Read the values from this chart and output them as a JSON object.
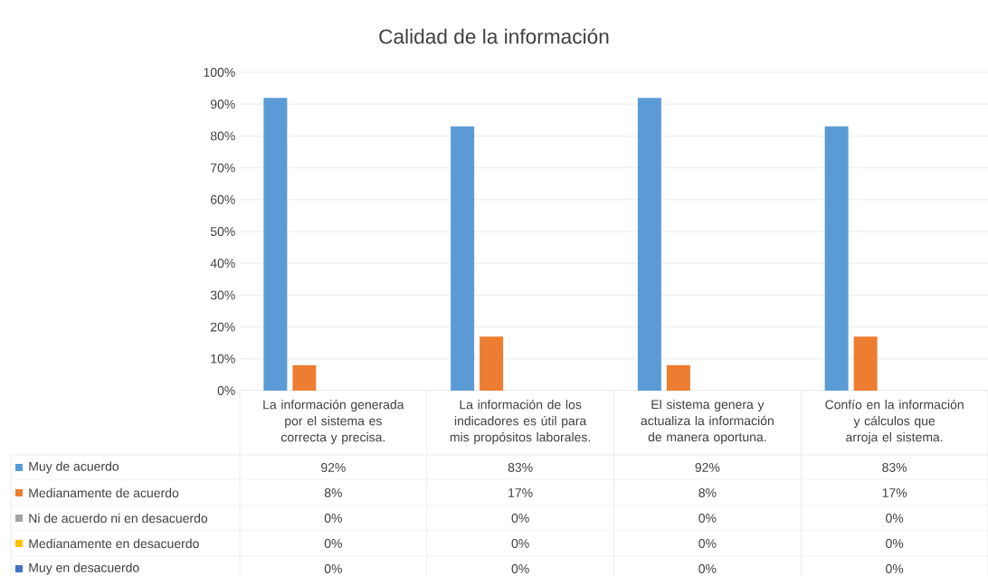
{
  "chart_data": {
    "type": "bar",
    "title": "Calidad de la información",
    "categories": [
      "La información generada por el sistema es correcta y precisa.",
      "La información de los indicadores es útil para mis propósitos laborales.",
      "El sistema genera y actualiza la información de manera oportuna.",
      "Confío en la información y cálculos que arroja el sistema."
    ],
    "series": [
      {
        "name": "Muy de acuerdo",
        "color": "#5b9bd5",
        "values": [
          92,
          83,
          92,
          83
        ],
        "value_labels": [
          "92%",
          "83%",
          "92%",
          "83%"
        ]
      },
      {
        "name": "Medianamente de acuerdo",
        "color": "#ed7d31",
        "values": [
          8,
          17,
          8,
          17
        ],
        "value_labels": [
          "8%",
          "17%",
          "8%",
          "17%"
        ]
      },
      {
        "name": "Ni de acuerdo ni en desacuerdo",
        "color": "#a5a5a5",
        "values": [
          0,
          0,
          0,
          0
        ],
        "value_labels": [
          "0%",
          "0%",
          "0%",
          "0%"
        ]
      },
      {
        "name": "Medianamente en desacuerdo",
        "color": "#ffc000",
        "values": [
          0,
          0,
          0,
          0
        ],
        "value_labels": [
          "0%",
          "0%",
          "0%",
          "0%"
        ]
      },
      {
        "name": "Muy en desacuerdo",
        "color": "#4472c4",
        "values": [
          0,
          0,
          0,
          0
        ],
        "value_labels": [
          "0%",
          "0%",
          "0%",
          "0%"
        ]
      }
    ],
    "ylim": [
      0,
      100
    ],
    "yticks": [
      {
        "value": 0,
        "label": "0%"
      },
      {
        "value": 10,
        "label": "10%"
      },
      {
        "value": 20,
        "label": "20%"
      },
      {
        "value": 30,
        "label": "30%"
      },
      {
        "value": 40,
        "label": "40%"
      },
      {
        "value": 50,
        "label": "50%"
      },
      {
        "value": 60,
        "label": "60%"
      },
      {
        "value": 70,
        "label": "70%"
      },
      {
        "value": 80,
        "label": "80%"
      },
      {
        "value": 90,
        "label": "90%"
      },
      {
        "value": 100,
        "label": "100%"
      }
    ],
    "grid": "y",
    "legend": "bottom"
  }
}
